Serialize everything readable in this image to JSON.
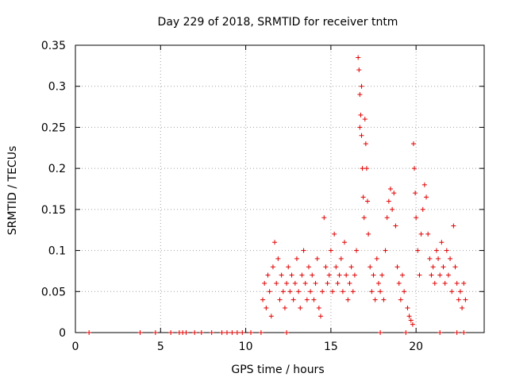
{
  "chart_data": {
    "type": "scatter",
    "title": "Day 229 of 2018, SRMTID for receiver tntm",
    "xlabel": "GPS time / hours",
    "ylabel": "SRMTID / TECUs",
    "xlim": [
      0,
      24
    ],
    "ylim": [
      0,
      0.35
    ],
    "x_ticks": [
      0,
      5,
      10,
      15,
      20
    ],
    "x_tick_labels": [
      "0",
      "5",
      "10",
      "15",
      "20"
    ],
    "y_ticks": [
      0,
      0.05,
      0.1,
      0.15,
      0.2,
      0.25,
      0.3,
      0.35
    ],
    "y_tick_labels": [
      "0",
      "0.05",
      "0.1",
      "0.15",
      "0.2",
      "0.25",
      "0.3",
      "0.35"
    ],
    "grid": true,
    "marker": "plus",
    "color": "#e00000",
    "series": [
      {
        "name": "SRMTID",
        "points": [
          [
            0.8,
            0.0
          ],
          [
            3.8,
            0.0
          ],
          [
            4.7,
            0.0
          ],
          [
            5.6,
            0.0
          ],
          [
            6.1,
            0.0
          ],
          [
            6.3,
            0.0
          ],
          [
            6.5,
            0.0
          ],
          [
            7.0,
            0.0
          ],
          [
            7.4,
            0.0
          ],
          [
            8.0,
            0.0
          ],
          [
            8.6,
            0.0
          ],
          [
            8.9,
            0.0
          ],
          [
            9.2,
            0.0
          ],
          [
            9.5,
            0.0
          ],
          [
            9.8,
            0.0
          ],
          [
            10.3,
            0.0
          ],
          [
            10.9,
            0.0
          ],
          [
            12.4,
            0.0
          ],
          [
            17.9,
            0.0
          ],
          [
            19.4,
            0.0
          ],
          [
            21.4,
            0.0
          ],
          [
            22.4,
            0.0
          ],
          [
            22.8,
            0.0
          ],
          [
            11.0,
            0.04
          ],
          [
            11.1,
            0.06
          ],
          [
            11.2,
            0.03
          ],
          [
            11.3,
            0.07
          ],
          [
            11.4,
            0.05
          ],
          [
            11.5,
            0.02
          ],
          [
            11.6,
            0.08
          ],
          [
            11.7,
            0.11
          ],
          [
            11.8,
            0.06
          ],
          [
            11.9,
            0.09
          ],
          [
            12.0,
            0.04
          ],
          [
            12.1,
            0.07
          ],
          [
            12.2,
            0.05
          ],
          [
            12.3,
            0.03
          ],
          [
            12.4,
            0.06
          ],
          [
            12.5,
            0.08
          ],
          [
            12.6,
            0.05
          ],
          [
            12.7,
            0.07
          ],
          [
            12.8,
            0.04
          ],
          [
            12.9,
            0.06
          ],
          [
            13.0,
            0.09
          ],
          [
            13.1,
            0.05
          ],
          [
            13.2,
            0.03
          ],
          [
            13.3,
            0.07
          ],
          [
            13.4,
            0.1
          ],
          [
            13.5,
            0.06
          ],
          [
            13.6,
            0.04
          ],
          [
            13.7,
            0.08
          ],
          [
            13.8,
            0.05
          ],
          [
            13.9,
            0.07
          ],
          [
            14.0,
            0.04
          ],
          [
            14.1,
            0.06
          ],
          [
            14.2,
            0.09
          ],
          [
            14.3,
            0.03
          ],
          [
            14.4,
            0.02
          ],
          [
            14.5,
            0.05
          ],
          [
            14.6,
            0.14
          ],
          [
            14.7,
            0.08
          ],
          [
            14.8,
            0.06
          ],
          [
            14.9,
            0.07
          ],
          [
            15.0,
            0.1
          ],
          [
            15.1,
            0.05
          ],
          [
            15.2,
            0.12
          ],
          [
            15.3,
            0.08
          ],
          [
            15.4,
            0.06
          ],
          [
            15.5,
            0.07
          ],
          [
            15.6,
            0.09
          ],
          [
            15.7,
            0.05
          ],
          [
            15.8,
            0.11
          ],
          [
            15.9,
            0.07
          ],
          [
            16.0,
            0.04
          ],
          [
            16.1,
            0.06
          ],
          [
            16.2,
            0.08
          ],
          [
            16.3,
            0.05
          ],
          [
            16.4,
            0.07
          ],
          [
            16.5,
            0.1
          ],
          [
            16.6,
            0.335
          ],
          [
            16.65,
            0.32
          ],
          [
            16.7,
            0.29
          ],
          [
            16.75,
            0.265
          ],
          [
            16.8,
            0.24
          ],
          [
            16.85,
            0.2
          ],
          [
            16.9,
            0.165
          ],
          [
            16.95,
            0.14
          ],
          [
            16.7,
            0.25
          ],
          [
            16.8,
            0.3
          ],
          [
            17.0,
            0.26
          ],
          [
            17.05,
            0.23
          ],
          [
            17.1,
            0.2
          ],
          [
            17.15,
            0.16
          ],
          [
            17.2,
            0.12
          ],
          [
            17.3,
            0.08
          ],
          [
            17.4,
            0.05
          ],
          [
            17.5,
            0.07
          ],
          [
            17.6,
            0.04
          ],
          [
            17.7,
            0.09
          ],
          [
            17.8,
            0.06
          ],
          [
            17.9,
            0.05
          ],
          [
            18.0,
            0.07
          ],
          [
            18.1,
            0.04
          ],
          [
            18.2,
            0.1
          ],
          [
            18.3,
            0.14
          ],
          [
            18.4,
            0.16
          ],
          [
            18.5,
            0.175
          ],
          [
            18.6,
            0.15
          ],
          [
            18.7,
            0.17
          ],
          [
            18.8,
            0.13
          ],
          [
            18.9,
            0.08
          ],
          [
            19.0,
            0.06
          ],
          [
            19.1,
            0.04
          ],
          [
            19.2,
            0.07
          ],
          [
            19.3,
            0.05
          ],
          [
            19.5,
            0.03
          ],
          [
            19.6,
            0.02
          ],
          [
            19.7,
            0.015
          ],
          [
            19.8,
            0.01
          ],
          [
            19.85,
            0.23
          ],
          [
            19.9,
            0.2
          ],
          [
            19.95,
            0.17
          ],
          [
            20.0,
            0.14
          ],
          [
            20.1,
            0.1
          ],
          [
            20.2,
            0.07
          ],
          [
            20.3,
            0.12
          ],
          [
            20.4,
            0.15
          ],
          [
            20.5,
            0.18
          ],
          [
            20.6,
            0.165
          ],
          [
            20.7,
            0.12
          ],
          [
            20.8,
            0.09
          ],
          [
            20.9,
            0.07
          ],
          [
            21.0,
            0.08
          ],
          [
            21.1,
            0.06
          ],
          [
            21.2,
            0.1
          ],
          [
            21.3,
            0.09
          ],
          [
            21.4,
            0.07
          ],
          [
            21.5,
            0.11
          ],
          [
            21.6,
            0.08
          ],
          [
            21.7,
            0.06
          ],
          [
            21.8,
            0.1
          ],
          [
            21.9,
            0.07
          ],
          [
            22.0,
            0.09
          ],
          [
            22.1,
            0.05
          ],
          [
            22.2,
            0.13
          ],
          [
            22.3,
            0.08
          ],
          [
            22.4,
            0.06
          ],
          [
            22.5,
            0.04
          ],
          [
            22.6,
            0.05
          ],
          [
            22.7,
            0.03
          ],
          [
            22.8,
            0.06
          ],
          [
            22.9,
            0.04
          ]
        ]
      }
    ]
  }
}
